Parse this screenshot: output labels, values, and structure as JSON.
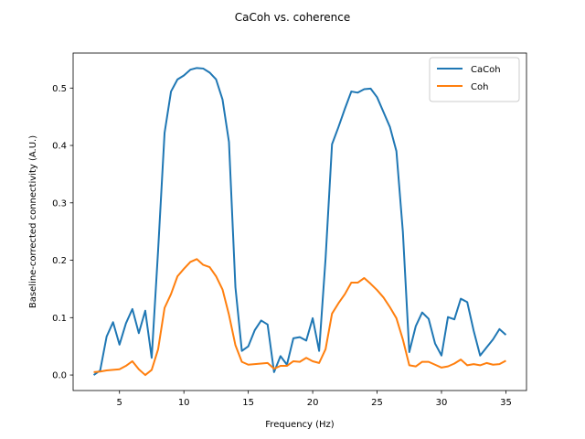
{
  "chart_data": {
    "type": "line",
    "title": "CaCoh vs. coherence",
    "xlabel": "Frequency (Hz)",
    "ylabel": "Baseline-corrected connectivity (A.U.)",
    "xlim": [
      1.4,
      36.6
    ],
    "ylim": [
      -0.027,
      0.561
    ],
    "xticks": [
      5,
      10,
      15,
      20,
      25,
      30,
      35
    ],
    "yticks": [
      0.0,
      0.1,
      0.2,
      0.3,
      0.4,
      0.5
    ],
    "ytick_labels": [
      "0.0",
      "0.1",
      "0.2",
      "0.3",
      "0.4",
      "0.5"
    ],
    "grid": false,
    "legend_position": "top-right",
    "x": [
      3,
      3.5,
      4,
      4.5,
      5,
      5.5,
      6,
      6.5,
      7,
      7.5,
      8,
      8.5,
      9,
      9.5,
      10,
      10.5,
      11,
      11.5,
      12,
      12.5,
      13,
      13.5,
      14,
      14.5,
      15,
      15.5,
      16,
      16.5,
      17,
      17.5,
      18,
      18.5,
      19,
      19.5,
      20,
      20.5,
      21,
      21.5,
      22,
      22.5,
      23,
      23.5,
      24,
      24.5,
      25,
      25.5,
      26,
      26.5,
      27,
      27.5,
      28,
      28.5,
      29,
      29.5,
      30,
      30.5,
      31,
      31.5,
      32,
      32.5,
      33,
      33.5,
      34,
      34.5,
      35
    ],
    "series": [
      {
        "name": "CaCoh",
        "color": "#1f77b4",
        "values": [
          0.0,
          0.008,
          0.067,
          0.092,
          0.053,
          0.09,
          0.115,
          0.073,
          0.112,
          0.03,
          0.218,
          0.422,
          0.494,
          0.515,
          0.522,
          0.532,
          0.535,
          0.534,
          0.527,
          0.515,
          0.48,
          0.406,
          0.153,
          0.042,
          0.05,
          0.078,
          0.095,
          0.088,
          0.005,
          0.033,
          0.018,
          0.064,
          0.066,
          0.06,
          0.099,
          0.042,
          0.203,
          0.402,
          0.432,
          0.464,
          0.494,
          0.492,
          0.498,
          0.499,
          0.484,
          0.458,
          0.432,
          0.39,
          0.25,
          0.04,
          0.085,
          0.109,
          0.098,
          0.055,
          0.034,
          0.101,
          0.097,
          0.133,
          0.127,
          0.077,
          0.034,
          0.048,
          0.062,
          0.08,
          0.07
        ]
      },
      {
        "name": "Coh",
        "color": "#ff7f0e",
        "values": [
          0.005,
          0.006,
          0.008,
          0.009,
          0.01,
          0.016,
          0.024,
          0.01,
          0.0,
          0.009,
          0.045,
          0.117,
          0.141,
          0.172,
          0.185,
          0.197,
          0.202,
          0.192,
          0.188,
          0.172,
          0.149,
          0.105,
          0.052,
          0.023,
          0.018,
          0.019,
          0.02,
          0.021,
          0.011,
          0.016,
          0.016,
          0.024,
          0.023,
          0.03,
          0.024,
          0.021,
          0.045,
          0.107,
          0.125,
          0.141,
          0.161,
          0.161,
          0.169,
          0.159,
          0.148,
          0.135,
          0.118,
          0.099,
          0.062,
          0.017,
          0.015,
          0.023,
          0.023,
          0.018,
          0.013,
          0.015,
          0.02,
          0.027,
          0.017,
          0.019,
          0.017,
          0.021,
          0.018,
          0.019,
          0.025
        ]
      }
    ]
  }
}
